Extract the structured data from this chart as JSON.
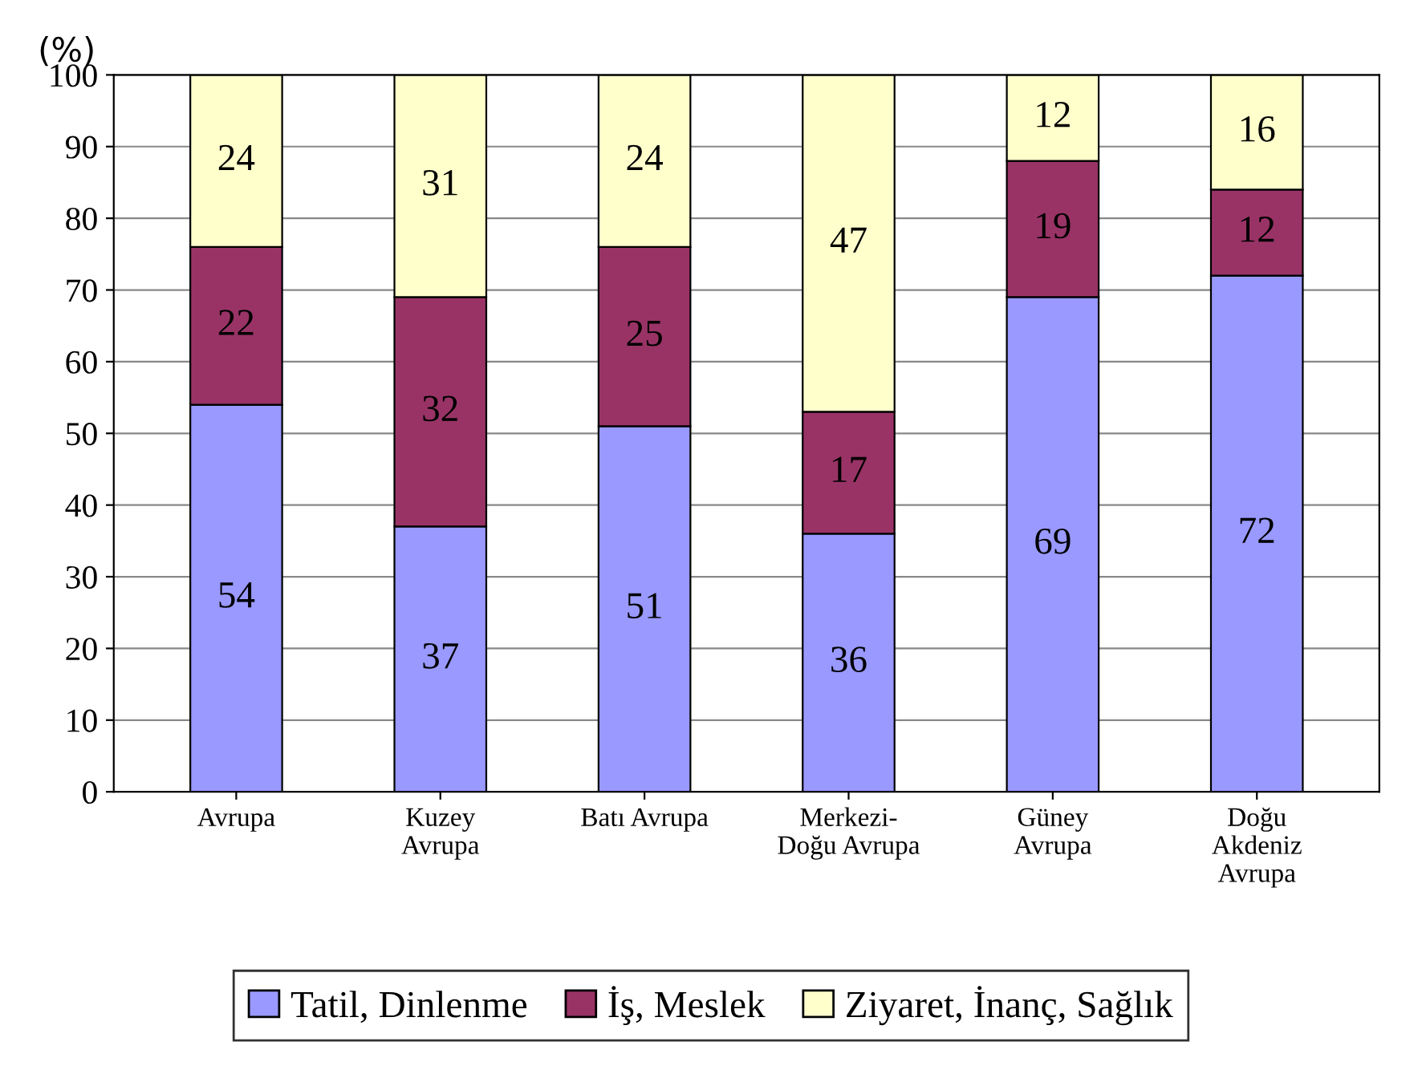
{
  "chart_data": {
    "type": "bar",
    "stacked": true,
    "ylabel": "(%)",
    "categories": [
      "Avrupa",
      "Kuzey\nAvrupa",
      "Batı Avrupa",
      "Merkezi-\nDoğu Avrupa",
      "Güney\nAvrupa",
      "Doğu\nAkdeniz\nAvrupa"
    ],
    "series": [
      {
        "name": "Tatil, Dinlenme",
        "color": "#9999ff",
        "values": [
          54,
          37,
          51,
          36,
          69,
          72
        ]
      },
      {
        "name": "İş, Meslek",
        "color": "#993366",
        "values": [
          22,
          32,
          25,
          17,
          19,
          12
        ]
      },
      {
        "name": "Ziyaret, İnanç, Sağlık",
        "color": "#ffffcc",
        "values": [
          24,
          31,
          24,
          47,
          12,
          16
        ]
      }
    ],
    "ylim": [
      0,
      100
    ],
    "yticks": [
      0,
      10,
      20,
      30,
      40,
      50,
      60,
      70,
      80,
      90,
      100
    ],
    "grid": "y",
    "legend": "bottom",
    "data_labels": true
  }
}
